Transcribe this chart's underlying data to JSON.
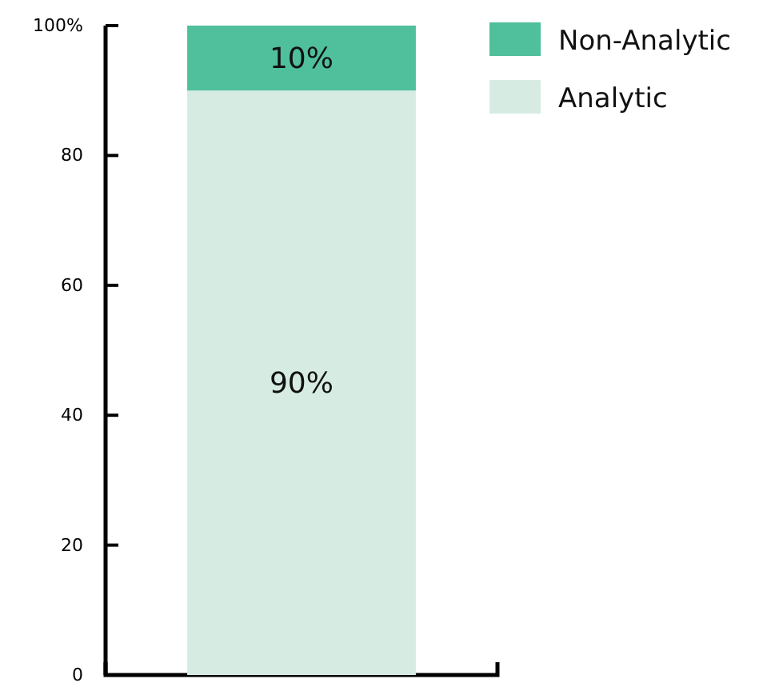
{
  "chart_data": {
    "type": "bar",
    "stacked": true,
    "categories": [
      null
    ],
    "series": [
      {
        "name": "Analytic",
        "color": "#d6ece3",
        "values": [
          90
        ],
        "value_labels": [
          "90%"
        ]
      },
      {
        "name": "Non-Analytic",
        "color": "#50bf9c",
        "values": [
          10
        ],
        "value_labels": [
          "10%"
        ]
      }
    ],
    "ylim": [
      0,
      100
    ],
    "yticks": [
      0,
      20,
      40,
      60,
      80,
      {
        "value": 100,
        "label": "100%"
      }
    ],
    "grid": false,
    "legend": "top right"
  }
}
